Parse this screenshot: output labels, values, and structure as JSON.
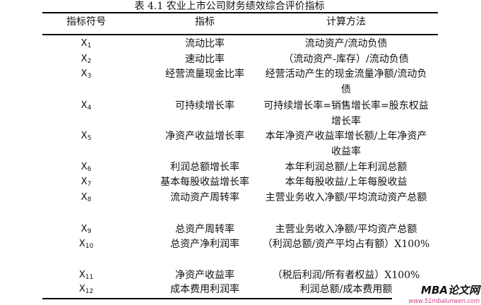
{
  "title": "表 4.1 农业上市公司财务绩效综合评价指标",
  "headers": [
    "指标符号",
    "指标",
    "计算方法"
  ],
  "rows": [
    {
      "symbol": "X",
      "sub": "1",
      "indicator": "流动比率",
      "method": "流动资产/流动负债"
    },
    {
      "symbol": "X",
      "sub": "2",
      "indicator": "速动比率",
      "method": "（流动资产-库存）/流动负债"
    },
    {
      "symbol": "X",
      "sub": "3",
      "indicator": "经营流量现金比率",
      "method": "经营活动产生的现金流量净额/流动负债"
    },
    {
      "symbol": "X",
      "sub": "4",
      "indicator": "可持续增长率",
      "method": "可持续增长率=销售增长率=股东权益增长率"
    },
    {
      "symbol": "X",
      "sub": "5",
      "indicator": "净资产收益增长率",
      "method": "本年净资产收益率增长额/上年净资产收益率"
    },
    {
      "symbol": "X",
      "sub": "6",
      "indicator": "利润总额增长率",
      "method": "本年利润总额/上年利润总额"
    },
    {
      "symbol": "X",
      "sub": "7",
      "indicator": "基本每股收益增长率",
      "method": "本年每股收益/上年每股收益"
    },
    {
      "symbol": "X",
      "sub": "8",
      "indicator": "流动资产周转率",
      "method": "主营业务收入净额/平均流动资产总额"
    },
    {
      "symbol": "X",
      "sub": "9",
      "indicator": "总资产周转率",
      "method": "主营业务收入净额/平均资产总额"
    },
    {
      "symbol": "X",
      "sub": "10",
      "indicator": "总资产净利润率",
      "method": "（利润总额/资产平均占有额）X100%"
    },
    {
      "symbol": "X",
      "sub": "11",
      "indicator": "净资产收益率",
      "method": "（税后利润/所有者权益）X100%"
    },
    {
      "symbol": "X",
      "sub": "12",
      "indicator": "成本费用利润率",
      "method": "利润总额/成本费用额"
    }
  ],
  "watermark": {
    "brand": "MBA论文网",
    "url": "www.51mbalunwen.com"
  }
}
